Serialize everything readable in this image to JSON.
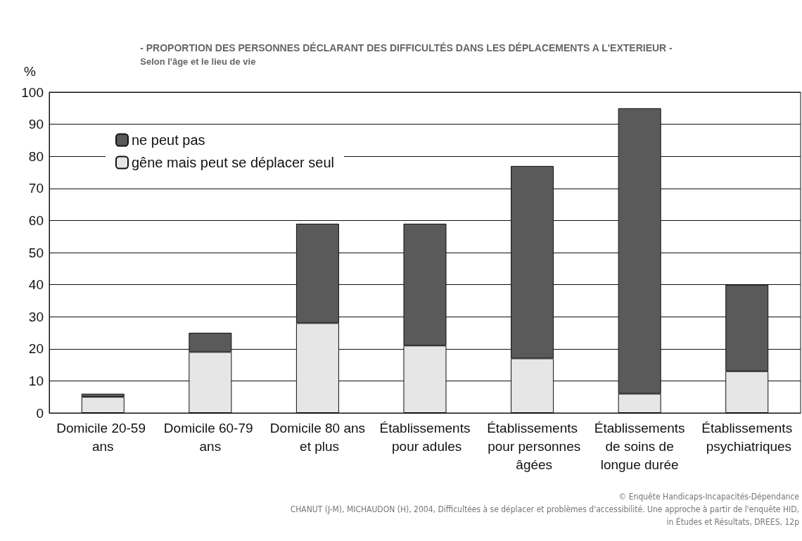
{
  "chart_data": {
    "type": "bar",
    "title": "- PROPORTION DES PERSONNES DÉCLARANT DES DIFFICULTÉS DANS LES DÉPLACEMENTS A L'EXTERIEUR -",
    "subtitle": "Selon l'âge et le lieu de vie",
    "ylabel": "%",
    "categories": [
      "Domicile 20-59 ans",
      "Domicile 60-79 ans",
      "Domicile 80 ans et plus",
      "Établissements pour adules",
      "Établissements pour personnes âgées",
      "Établissements de soins de longue durée",
      "Établissements psychiatriques"
    ],
    "series": [
      {
        "name": "gêne mais peut se déplacer seul",
        "color": "#e6e6e6",
        "values": [
          5,
          19,
          28,
          21,
          17,
          6,
          13
        ]
      },
      {
        "name": "ne peut pas",
        "color": "#5a5a5a",
        "values": [
          1,
          6,
          31,
          38,
          60,
          89,
          27
        ]
      }
    ],
    "stacked": true,
    "ylim": [
      0,
      100
    ],
    "yticks": [
      0,
      10,
      20,
      30,
      40,
      50,
      60,
      70,
      80,
      90,
      100
    ],
    "grid": "y",
    "legend": "top left",
    "annotations": [
      "© Enquête Handicaps-Incapacités-Dépendance",
      "CHANUT (J-M), MICHAUDON (H), 2004, Difficultées à se déplacer et problèmes d'accessibilité. Une approche à partir de l'enquête HID,",
      "in Études et Résultats, DREES, 12p"
    ]
  }
}
